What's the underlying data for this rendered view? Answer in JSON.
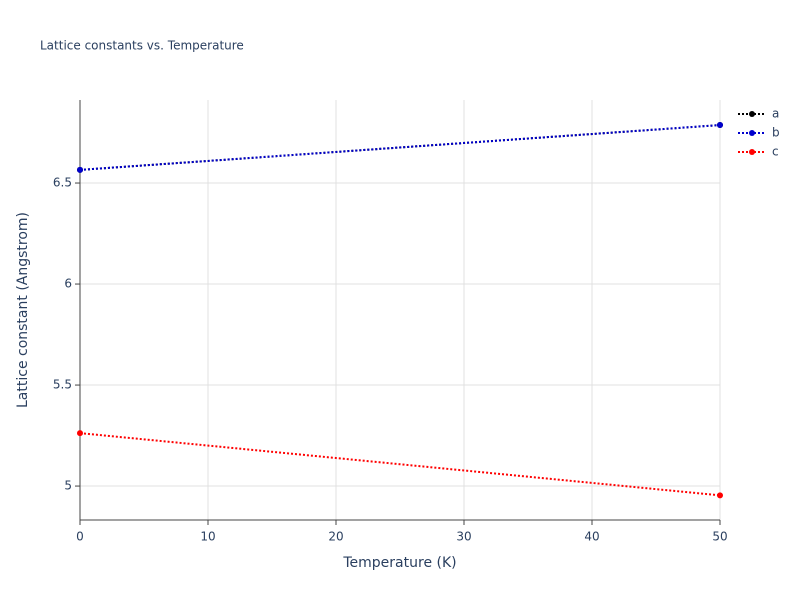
{
  "chart_data": {
    "type": "line",
    "title": "Lattice constants vs. Temperature",
    "x_label": "Temperature (K)",
    "y_label": "Lattice constant (Angstrom)",
    "x": [
      0,
      50
    ],
    "series": [
      {
        "name": "a",
        "color": "#000000",
        "values": [
          6.565,
          6.787
        ]
      },
      {
        "name": "b",
        "color": "#0000cd",
        "values": [
          6.565,
          6.787
        ]
      },
      {
        "name": "c",
        "color": "#ff0000",
        "values": [
          5.262,
          4.954
        ]
      }
    ],
    "xlim": [
      0,
      50
    ],
    "xticks": [
      0,
      10,
      20,
      30,
      40,
      50
    ],
    "ylim": [
      4.832,
      6.911
    ],
    "yticks": [
      5,
      5.5,
      6,
      6.5
    ],
    "grid": true,
    "legend": "right"
  }
}
